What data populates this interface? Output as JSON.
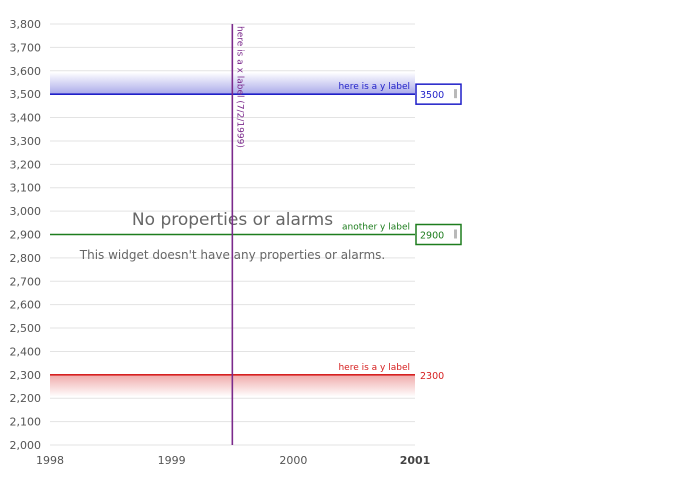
{
  "chart_data": {
    "type": "line",
    "title": "",
    "xlabel": "",
    "ylabel": "",
    "xlim": [
      1998,
      2001
    ],
    "ylim": [
      2000,
      3800
    ],
    "x_ticks": [
      1998,
      1999,
      2000,
      2001
    ],
    "x_tick_labels": [
      "1998",
      "1999",
      "2000",
      "2001"
    ],
    "y_ticks": [
      2000,
      2100,
      2200,
      2300,
      2400,
      2500,
      2600,
      2700,
      2800,
      2900,
      3000,
      3100,
      3200,
      3300,
      3400,
      3500,
      3600,
      3700,
      3800
    ],
    "y_tick_labels": [
      "2,000",
      "2,100",
      "2,200",
      "2,300",
      "2,400",
      "2,500",
      "2,600",
      "2,700",
      "2,800",
      "2,900",
      "3,000",
      "3,100",
      "3,200",
      "3,300",
      "3,400",
      "3,500",
      "3,600",
      "3,700",
      "3,800"
    ],
    "grid": true,
    "series": [],
    "annotations": {
      "y_thresholds": [
        {
          "value": 3500,
          "label": "here is a y label",
          "value_label": "3500",
          "color": "#1f1fc8",
          "shade": "above",
          "boxed": true
        },
        {
          "value": 2900,
          "label": "another y label",
          "value_label": "2900",
          "color": "#1e7d1e",
          "shade": "none",
          "boxed": true
        },
        {
          "value": 2300,
          "label": "here is a y label",
          "value_label": "2300",
          "color": "#d62020",
          "shade": "below",
          "boxed": false
        }
      ],
      "x_thresholds": [
        {
          "value": "1999-07-02",
          "label": "here is a x label (7/2/1999)",
          "color": "#7b2a8c"
        }
      ]
    }
  },
  "empty_state": {
    "title": "No properties or alarms",
    "message": "This widget doesn't have any properties or alarms."
  }
}
